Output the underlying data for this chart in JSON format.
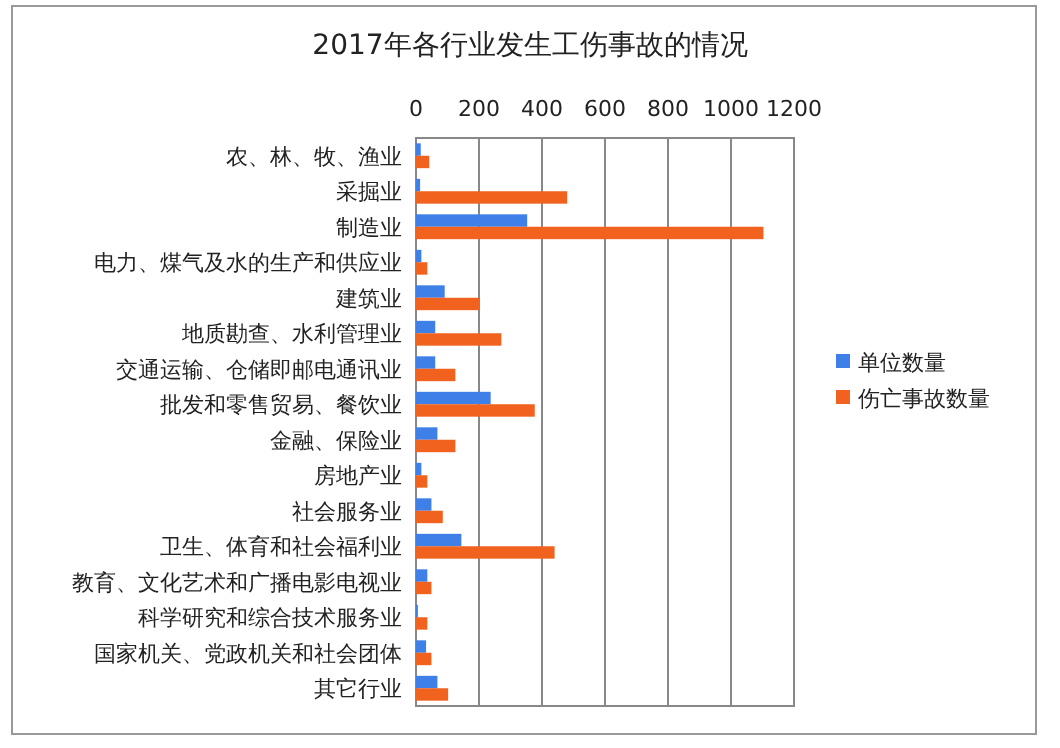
{
  "chart_data": {
    "type": "bar",
    "orientation": "horizontal",
    "title": "2017年各行业发生工伤事故的情况",
    "categories": [
      "农、林、牧、渔业",
      "采掘业",
      "制造业",
      "电力、煤气及水的生产和供应业",
      "建筑业",
      "地质勘查、水利管理业",
      "交通运输、仓储即邮电通讯业",
      "批发和零售贸易、餐饮业",
      "金融、保险业",
      "房地产业",
      "社会服务业",
      "卫生、体育和社会福利业",
      "教育、文化艺术和广播电影电视业",
      "科学研究和综合技术服务业",
      "国家机关、党政机关和社会团体",
      "其它行业"
    ],
    "series": [
      {
        "name": "单位数量",
        "color": "#3f7fe8",
        "values": [
          15,
          13,
          353,
          17,
          91,
          61,
          61,
          237,
          68,
          17,
          49,
          144,
          36,
          6,
          32,
          68
        ]
      },
      {
        "name": "伤亡事故数量",
        "color": "#f0621e",
        "values": [
          42,
          480,
          1103,
          36,
          201,
          271,
          125,
          377,
          125,
          36,
          85,
          440,
          49,
          36,
          49,
          102
        ]
      }
    ],
    "xlim": [
      0,
      1200
    ],
    "xticks": [
      0,
      200,
      400,
      600,
      800,
      1000,
      1200
    ],
    "grid": "x",
    "legend": "right"
  }
}
